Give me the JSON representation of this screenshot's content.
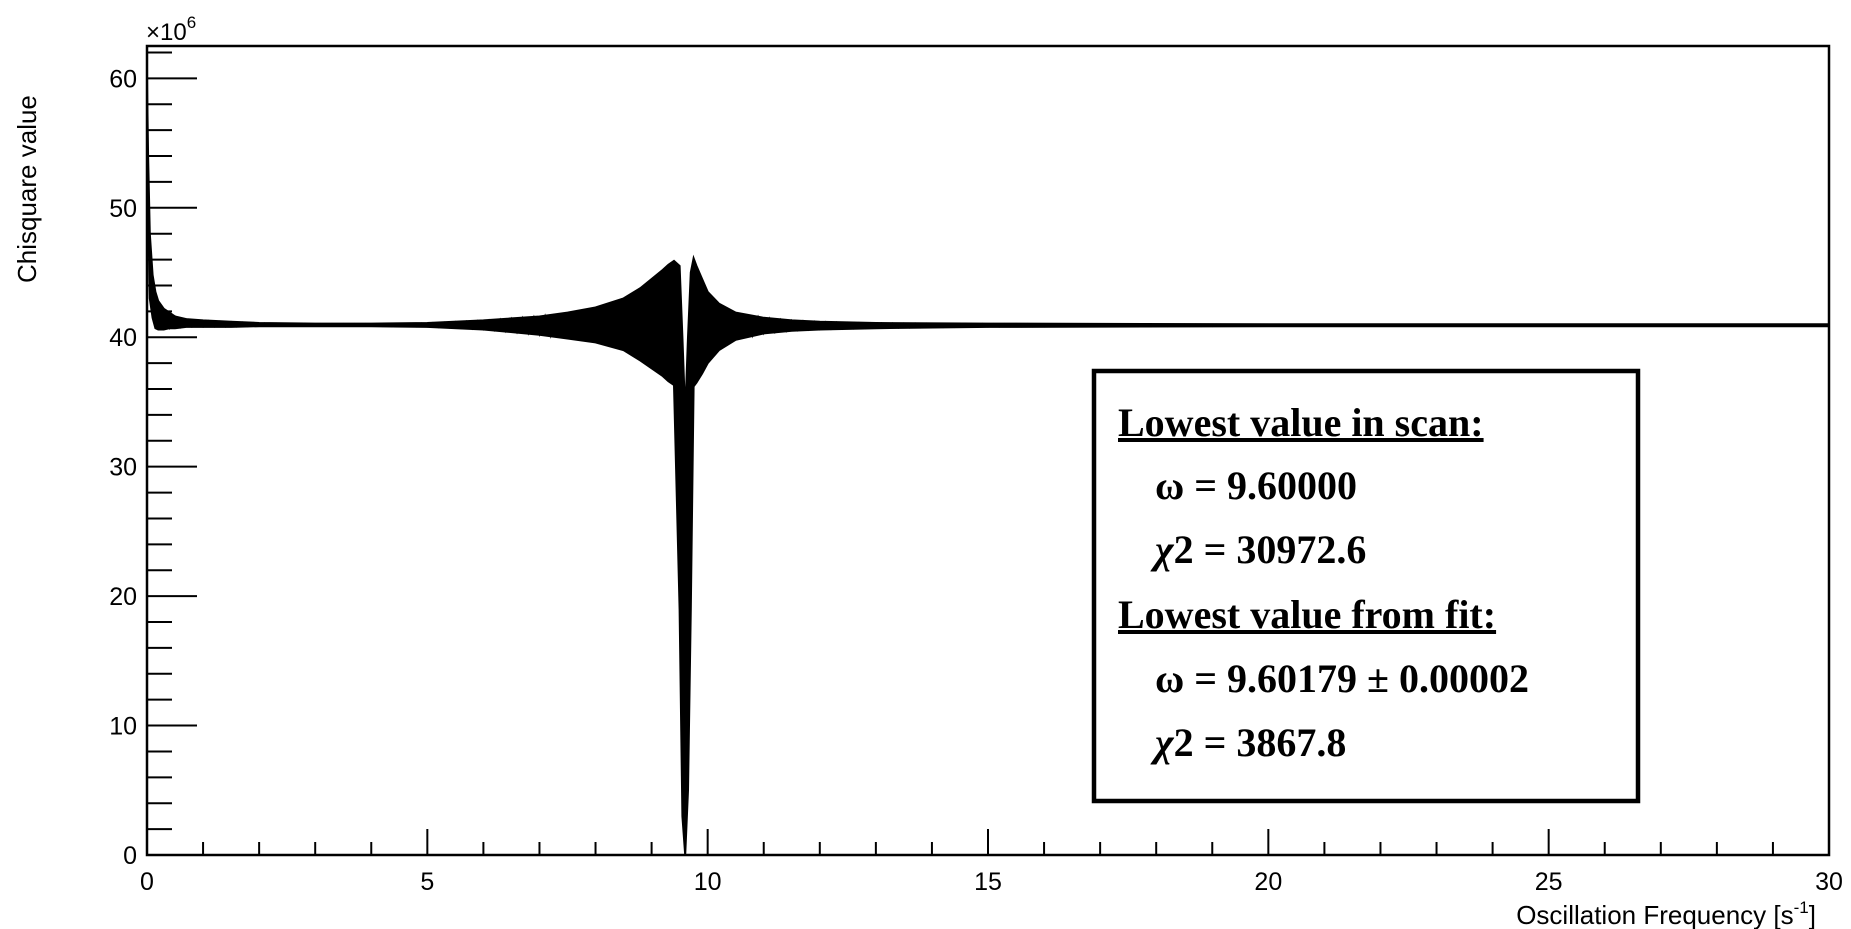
{
  "chart_data": {
    "type": "line",
    "title": "",
    "xlabel": "Oscillation Frequency [s",
    "xlabel_sup": "-1",
    "xlabel_close": "]",
    "ylabel": "Chisquare value",
    "y_exponent_base": "×10",
    "y_exponent_power": "6",
    "xlim": [
      0,
      30
    ],
    "ylim": [
      0,
      62.5
    ],
    "y_unit_scale": 1000000,
    "x_ticks": [
      0,
      5,
      10,
      15,
      20,
      25,
      30
    ],
    "x_tick_labels": [
      "0",
      "5",
      "10",
      "15",
      "20",
      "25",
      "30"
    ],
    "y_ticks": [
      0,
      10,
      20,
      30,
      40,
      50,
      60
    ],
    "y_tick_labels": [
      "0",
      "10",
      "20",
      "30",
      "40",
      "50",
      "60"
    ],
    "grid": false,
    "line_color": "#000000",
    "series": [
      {
        "x": [
          0.0,
          0.02,
          0.05,
          0.1,
          0.15,
          0.2,
          0.3,
          0.4,
          0.5,
          0.7,
          1.0,
          1.5,
          2.0,
          3.0,
          4.0,
          5.0,
          6.0,
          7.0,
          7.5,
          8.0,
          8.5,
          8.8,
          9.0,
          9.2,
          9.3,
          9.4,
          9.5,
          9.55,
          9.6,
          9.65,
          9.7,
          9.75,
          9.8,
          9.9,
          10.0,
          10.2,
          10.5,
          11.0,
          11.5,
          12.0,
          13.0,
          15.0,
          20.0,
          25.0,
          30.0
        ],
        "y_upper": [
          60.0,
          54.0,
          48.0,
          44.8,
          43.5,
          42.8,
          42.2,
          41.9,
          41.6,
          41.4,
          41.3,
          41.2,
          41.1,
          41.05,
          41.05,
          41.1,
          41.3,
          41.6,
          41.9,
          42.3,
          43.0,
          43.8,
          44.5,
          45.2,
          45.6,
          45.9,
          45.5,
          40.0,
          34.0,
          40.0,
          45.0,
          46.1,
          45.5,
          44.5,
          43.5,
          42.6,
          41.9,
          41.5,
          41.3,
          41.2,
          41.1,
          41.05,
          41.0,
          41.0,
          41.0
        ],
        "y_lower": [
          60.0,
          50.0,
          43.0,
          41.5,
          40.7,
          40.6,
          40.6,
          40.7,
          40.7,
          40.8,
          40.8,
          40.8,
          40.85,
          40.85,
          40.85,
          40.8,
          40.6,
          40.2,
          39.9,
          39.6,
          39.0,
          38.2,
          37.6,
          37.0,
          36.6,
          36.3,
          19.0,
          3.0,
          0.0,
          5.0,
          19.0,
          36.2,
          36.5,
          37.2,
          38.0,
          39.0,
          39.8,
          40.3,
          40.5,
          40.6,
          40.7,
          40.8,
          40.85,
          40.85,
          40.85
        ]
      }
    ]
  },
  "annotation_box": {
    "scan_heading": "Lowest value in scan:",
    "scan_omega_symbol": "ω",
    "scan_omega_value": " = 9.60000",
    "scan_chi_symbol": "χ",
    "scan_chi_value": "2 = 30972.6",
    "fit_heading": "Lowest value from fit:",
    "fit_omega_symbol": "ω",
    "fit_omega_value": " = 9.60179 ± 0.00002",
    "fit_chi_symbol": "χ",
    "fit_chi_value": "2 = 3867.8"
  }
}
